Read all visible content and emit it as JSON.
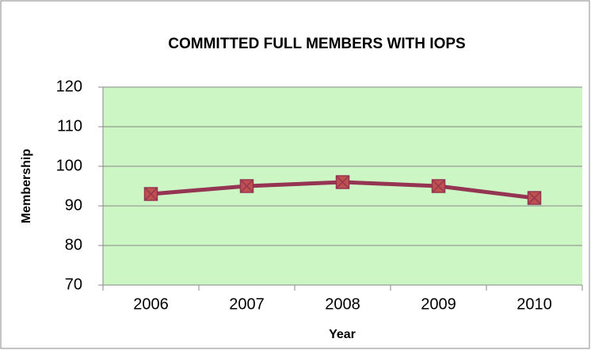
{
  "chart_data": {
    "type": "line",
    "title": "COMMITTED FULL MEMBERS WITH IOPS",
    "x_label": "Year",
    "y_label": "Membership",
    "categories": [
      "2006",
      "2007",
      "2008",
      "2009",
      "2010"
    ],
    "series": [
      {
        "name": "Membership",
        "color": "#953553",
        "marker_color": "#c0504d",
        "values": [
          93,
          95,
          96,
          95,
          92
        ]
      }
    ],
    "ylim": [
      70,
      120
    ],
    "yticks": [
      70,
      80,
      90,
      100,
      110,
      120
    ],
    "grid": true,
    "plot_background": "#ccf7c4"
  }
}
